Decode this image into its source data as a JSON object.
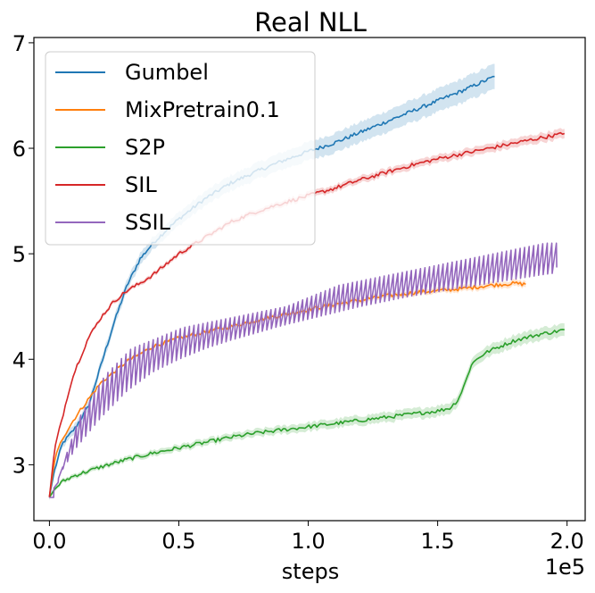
{
  "chart_data": {
    "type": "line",
    "title": "Real NLL",
    "xlabel": "steps",
    "ylabel": "",
    "x_offset_label": "1e5",
    "xlim": [
      -0.06,
      2.07
    ],
    "ylim": [
      2.47,
      7.05
    ],
    "xticks": [
      0.0,
      0.5,
      1.0,
      1.5,
      2.0
    ],
    "xtick_labels": [
      "0.0",
      "0.5",
      "1.0",
      "1.5",
      "2.0"
    ],
    "yticks": [
      3,
      4,
      5,
      6,
      7
    ],
    "ytick_labels": [
      "3",
      "4",
      "5",
      "6",
      "7"
    ],
    "legend_position": "upper-left",
    "series": [
      {
        "name": "Gumbel",
        "color": "#1f77b4",
        "x": [
          0.0,
          0.02,
          0.05,
          0.1,
          0.15,
          0.2,
          0.25,
          0.3,
          0.35,
          0.4,
          0.45,
          0.5,
          0.6,
          0.7,
          0.8,
          0.9,
          1.0,
          1.1,
          1.2,
          1.3,
          1.4,
          1.5,
          1.6,
          1.72
        ],
        "values": [
          2.7,
          2.95,
          3.2,
          3.35,
          3.55,
          3.95,
          4.35,
          4.7,
          4.95,
          5.1,
          5.22,
          5.33,
          5.52,
          5.67,
          5.78,
          5.88,
          5.97,
          6.05,
          6.15,
          6.25,
          6.35,
          6.45,
          6.55,
          6.68
        ],
        "band": 0.08
      },
      {
        "name": "MixPretrain0.1",
        "color": "#ff7f0e",
        "x": [
          0.0,
          0.02,
          0.05,
          0.1,
          0.15,
          0.2,
          0.3,
          0.4,
          0.5,
          0.6,
          0.7,
          0.8,
          0.9,
          1.0,
          1.1,
          1.2,
          1.3,
          1.4,
          1.5,
          1.6,
          1.7,
          1.8,
          1.84
        ],
        "values": [
          2.7,
          3.05,
          3.25,
          3.45,
          3.62,
          3.78,
          3.98,
          4.12,
          4.2,
          4.26,
          4.31,
          4.37,
          4.42,
          4.47,
          4.52,
          4.56,
          4.6,
          4.63,
          4.65,
          4.67,
          4.7,
          4.72,
          4.71
        ],
        "band": 0.02
      },
      {
        "name": "S2P",
        "color": "#2ca02c",
        "x": [
          0.0,
          0.02,
          0.05,
          0.1,
          0.2,
          0.3,
          0.4,
          0.5,
          0.6,
          0.7,
          0.8,
          0.9,
          1.0,
          1.1,
          1.2,
          1.3,
          1.4,
          1.5,
          1.55,
          1.58,
          1.61,
          1.63,
          1.66,
          1.7,
          1.75,
          1.8,
          1.85,
          1.9,
          1.95,
          1.99
        ],
        "values": [
          2.69,
          2.77,
          2.84,
          2.9,
          2.98,
          3.05,
          3.11,
          3.16,
          3.21,
          3.26,
          3.3,
          3.33,
          3.36,
          3.39,
          3.42,
          3.45,
          3.48,
          3.51,
          3.54,
          3.62,
          3.8,
          3.95,
          4.02,
          4.08,
          4.13,
          4.18,
          4.21,
          4.24,
          4.26,
          4.28
        ],
        "band": 0.04
      },
      {
        "name": "SIL",
        "color": "#d62728",
        "x": [
          0.0,
          0.02,
          0.05,
          0.08,
          0.1,
          0.15,
          0.2,
          0.25,
          0.3,
          0.35,
          0.4,
          0.45,
          0.5,
          0.6,
          0.7,
          0.8,
          0.9,
          1.0,
          1.1,
          1.2,
          1.3,
          1.4,
          1.5,
          1.6,
          1.7,
          1.8,
          1.9,
          1.99
        ],
        "values": [
          2.69,
          3.15,
          3.45,
          3.75,
          3.9,
          4.2,
          4.4,
          4.55,
          4.65,
          4.72,
          4.8,
          4.9,
          5.0,
          5.15,
          5.3,
          5.4,
          5.48,
          5.55,
          5.62,
          5.7,
          5.77,
          5.84,
          5.9,
          5.95,
          6.0,
          6.05,
          6.1,
          6.14
        ],
        "band": 0.03
      },
      {
        "name": "SSIL",
        "color": "#9467bd",
        "x": [
          0.0,
          0.05,
          0.1,
          0.2,
          0.3,
          0.4,
          0.5,
          0.6,
          0.7,
          0.8,
          0.9,
          1.0,
          1.1,
          1.2,
          1.3,
          1.4,
          1.5,
          1.6,
          1.7,
          1.8,
          1.9,
          1.96
        ],
        "base": [
          2.69,
          2.95,
          3.15,
          3.45,
          3.7,
          3.88,
          4.0,
          4.1,
          4.18,
          4.25,
          4.32,
          4.38,
          4.44,
          4.5,
          4.55,
          4.6,
          4.64,
          4.68,
          4.72,
          4.76,
          4.8,
          4.82
        ],
        "peak": [
          2.69,
          3.1,
          3.45,
          3.85,
          4.1,
          4.2,
          4.3,
          4.35,
          4.4,
          4.45,
          4.5,
          4.6,
          4.7,
          4.75,
          4.8,
          4.85,
          4.9,
          4.95,
          5.0,
          5.05,
          5.1,
          5.1
        ],
        "period": 0.0175,
        "end_value": 4.87
      }
    ]
  }
}
